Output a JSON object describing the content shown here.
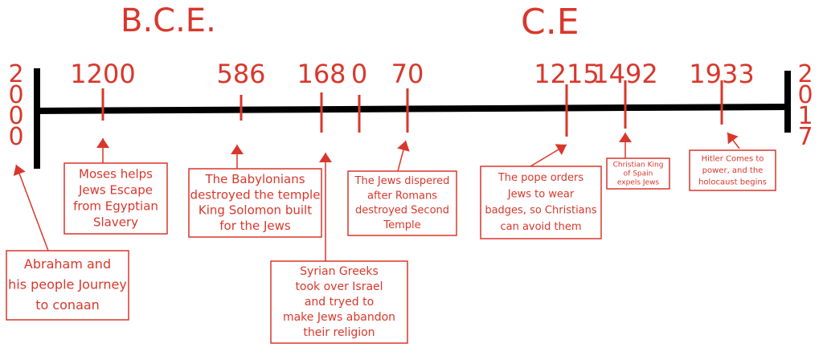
{
  "headings": {
    "bce": "B.C.E.",
    "ce": "C.E"
  },
  "ends": {
    "start": "2000",
    "end": "2017"
  },
  "years": [
    "1200",
    "586",
    "168",
    "0",
    "70",
    "1215",
    "1492",
    "1933"
  ],
  "notes": [
    {
      "lines": [
        "Abraham and",
        "his people Journey",
        "to conaan"
      ]
    },
    {
      "lines": [
        "Moses helps",
        "Jews Escape",
        "from Egyptian",
        "Slavery"
      ]
    },
    {
      "lines": [
        "The Babylonians",
        "destroyed the temple",
        "King Solomon built",
        "for the Jews"
      ]
    },
    {
      "lines": [
        "Syrian Greeks",
        "took over Israel",
        "and tryed to",
        "make Jews abandon",
        "their religion"
      ]
    },
    {
      "lines": [
        "The Jews dispered",
        "after Romans",
        "destroyed Second",
        "Temple"
      ]
    },
    {
      "lines": [
        "The pope orders",
        "Jews to wear",
        "badges, so Christians",
        "can avoid them"
      ]
    },
    {
      "lines": [
        "Christian King",
        "of Spain",
        "expels Jews"
      ]
    },
    {
      "lines": [
        "Hitler Comes to",
        "power, and the",
        "holocaust begins"
      ]
    }
  ]
}
